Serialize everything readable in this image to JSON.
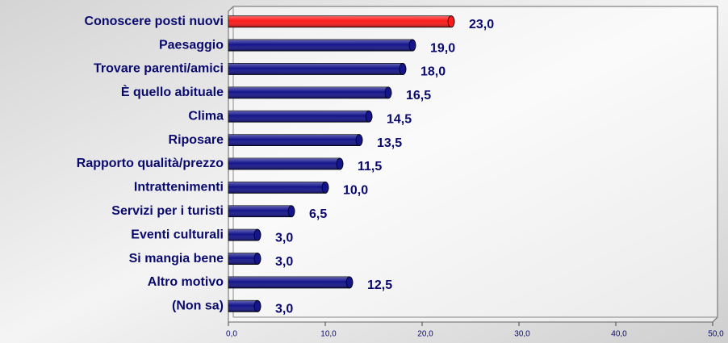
{
  "chart_data": {
    "type": "bar",
    "orientation": "horizontal",
    "categories": [
      "Conoscere posti nuovi",
      "Paesaggio",
      "Trovare parenti/amici",
      "È quello abituale",
      "Clima",
      "Riposare",
      "Rapporto qualità/prezzo",
      "Intrattenimenti",
      "Servizi  per i turisti",
      "Eventi culturali",
      "Si mangia bene",
      "Altro motivo",
      "(Non sa)"
    ],
    "values": [
      23.0,
      19.0,
      18.0,
      16.5,
      14.5,
      13.5,
      11.5,
      10.0,
      6.5,
      3.0,
      3.0,
      12.5,
      3.0
    ],
    "value_labels": [
      "23,0",
      "19,0",
      "18,0",
      "16,5",
      "14,5",
      "13,5",
      "11,5",
      "10,0",
      "6,5",
      "3,0",
      "3,0",
      "12,5",
      "3,0"
    ],
    "colors": [
      "#ff1a1a",
      "#14148c",
      "#14148c",
      "#14148c",
      "#14148c",
      "#14148c",
      "#14148c",
      "#14148c",
      "#14148c",
      "#14148c",
      "#14148c",
      "#14148c",
      "#14148c"
    ],
    "xlim": [
      0,
      50
    ],
    "xticks": [
      {
        "value": 0,
        "label": "0,0"
      },
      {
        "value": 10,
        "label": "10,0"
      },
      {
        "value": 20,
        "label": "20,0"
      },
      {
        "value": 30,
        "label": "30,0"
      },
      {
        "value": 40,
        "label": "40,0"
      },
      {
        "value": 50,
        "label": "50,0"
      }
    ]
  }
}
